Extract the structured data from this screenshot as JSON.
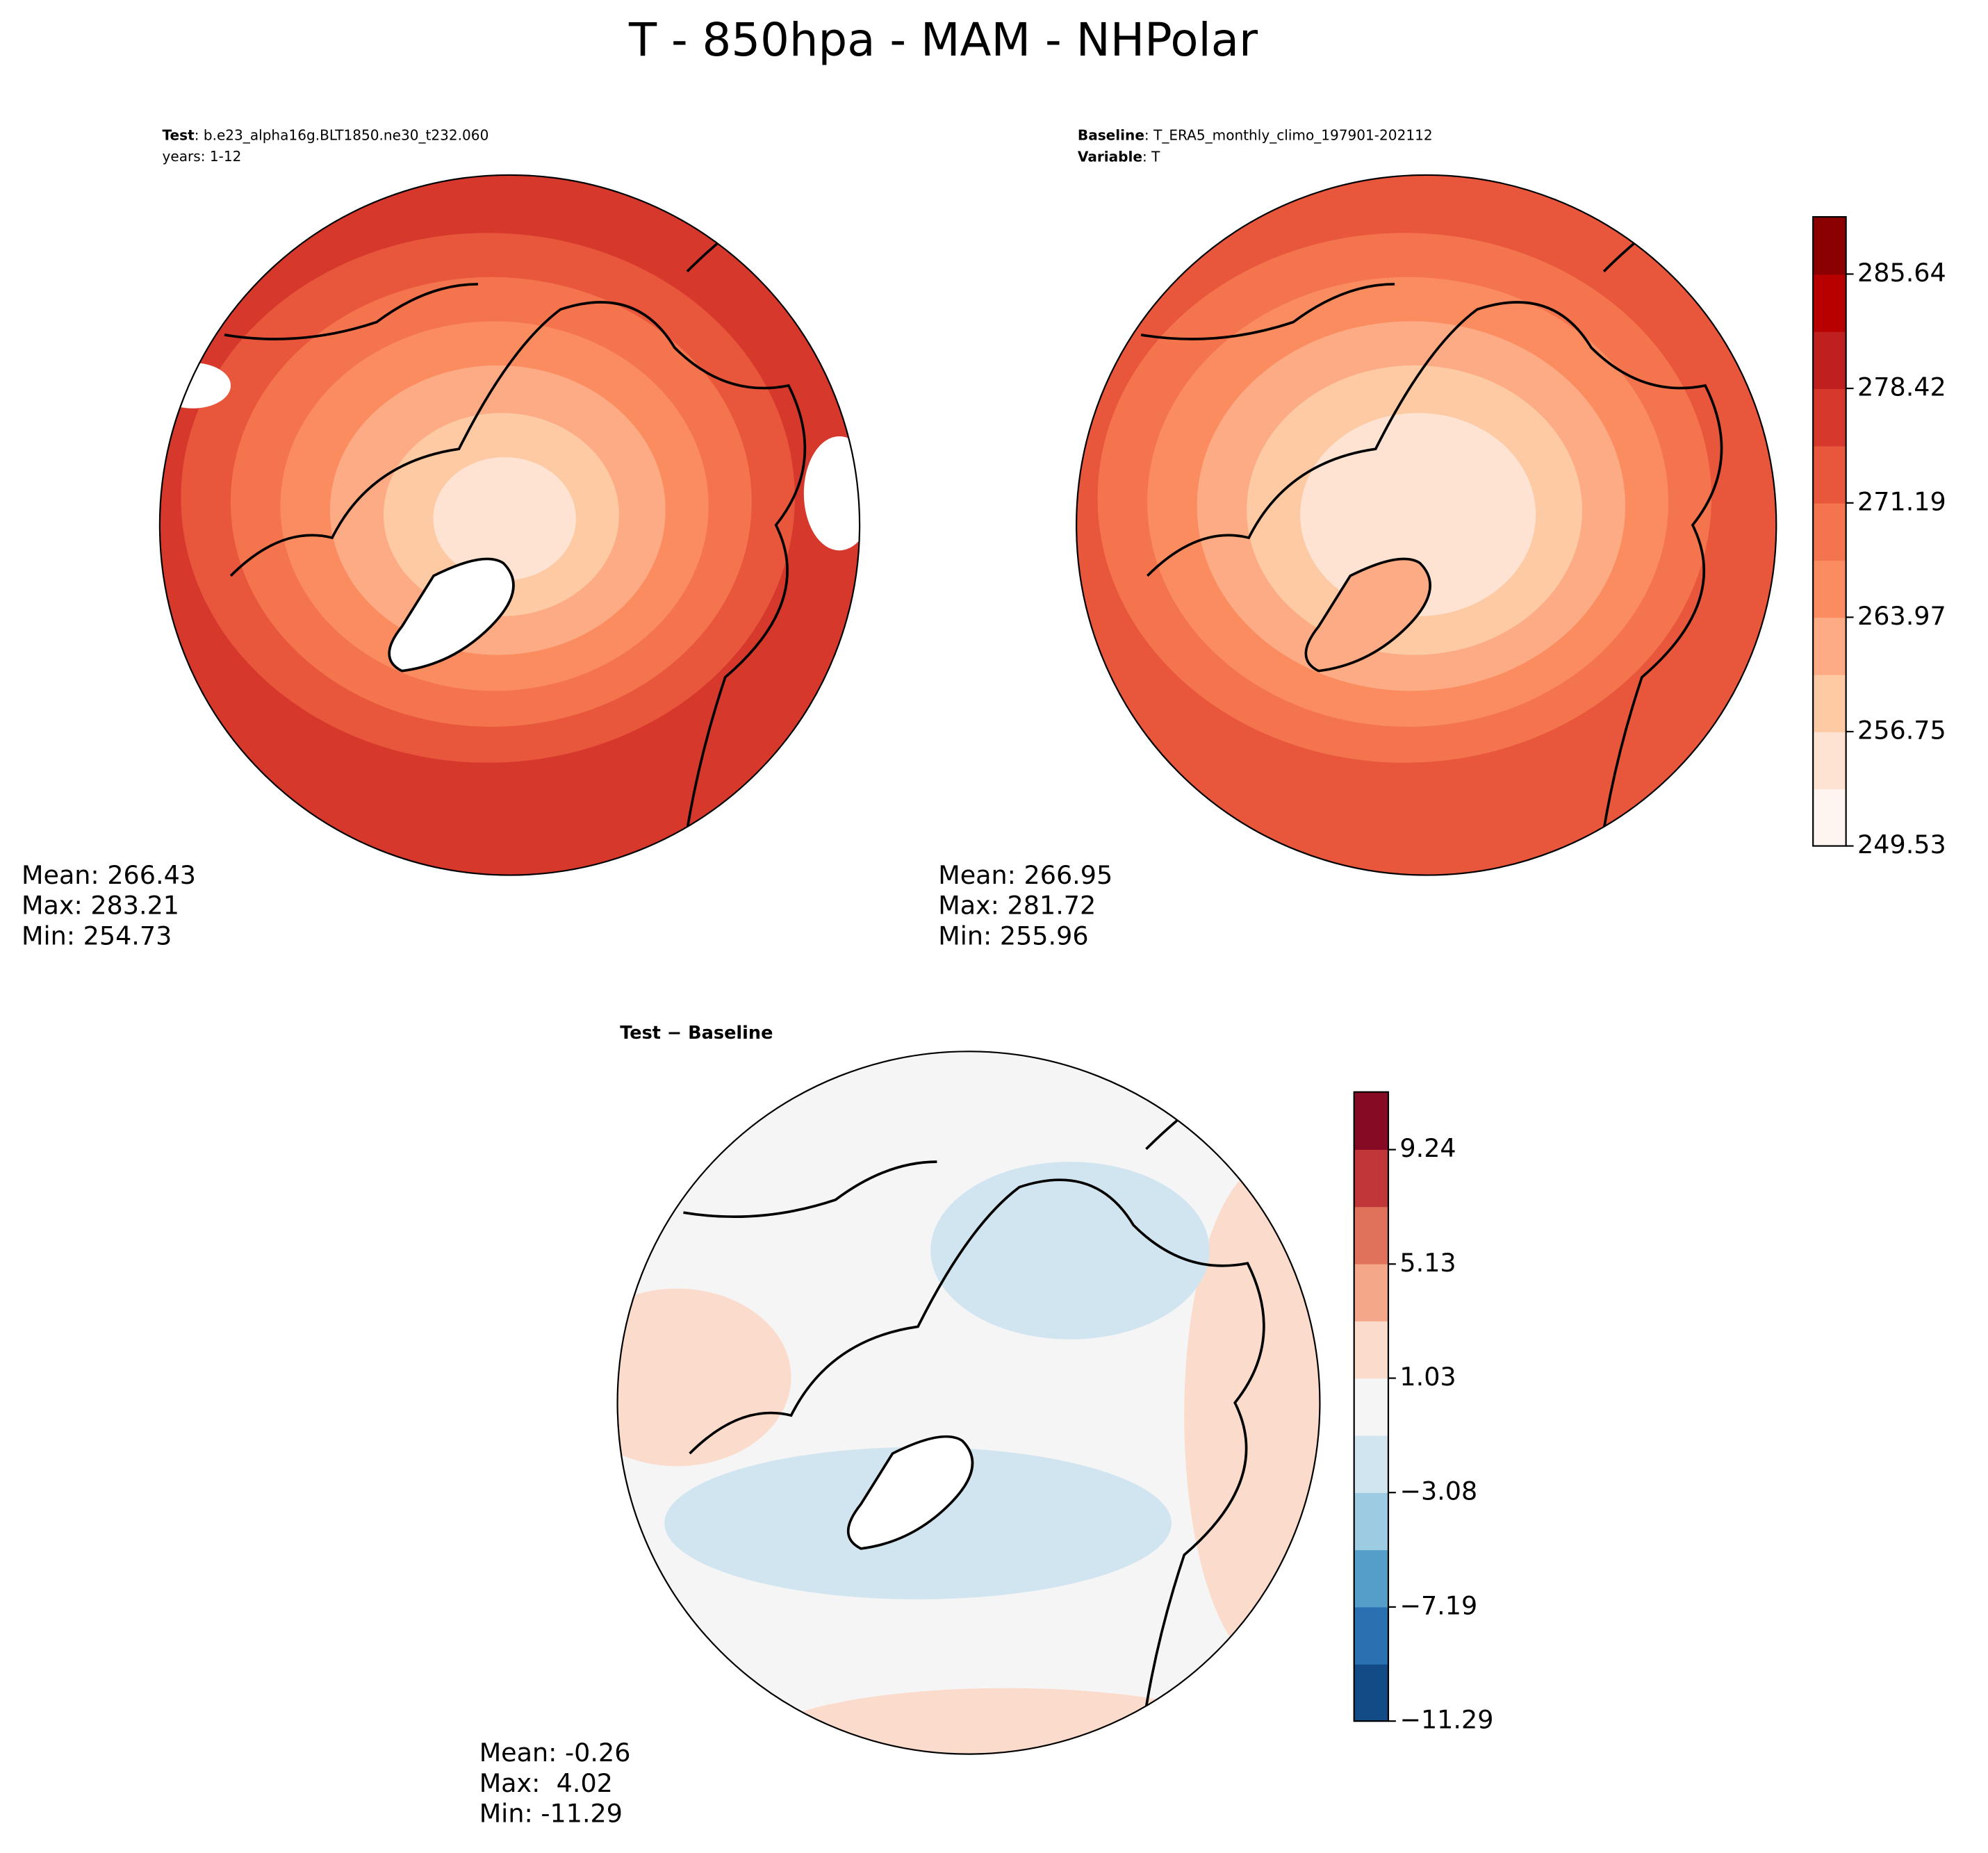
{
  "title": "T - 850hpa - MAM - NHPolar",
  "chart_data": [
    {
      "type": "map",
      "header_label": "Test",
      "header_text": ": b.e23_alpha16g.BLT1850.ne30_t232.060",
      "header_line2": "years: 1-12",
      "stats": [
        "Mean: 266.43",
        "Max: 283.21",
        "Min: 254.73"
      ]
    },
    {
      "type": "map",
      "header_label": "Baseline",
      "header_text": ": T_ERA5_monthly_climo_197901-202112",
      "header_label2": "Variable",
      "header_text2": ": T",
      "stats": [
        "Mean: 266.95",
        "Max: 281.72",
        "Min: 255.96"
      ],
      "clim": [
        249.53,
        289.25
      ],
      "cticks": [
        249.53,
        256.75,
        263.97,
        271.19,
        278.42,
        285.64
      ],
      "colors": [
        "#fff5f0",
        "#fee3d3",
        "#fdcaa4",
        "#fcab84",
        "#fb8c60",
        "#f4744d",
        "#e8563b",
        "#d6392c",
        "#c01f1f",
        "#b80000",
        "#8b0000"
      ]
    },
    {
      "type": "map",
      "header_label": "Test − Baseline",
      "stats": [
        "Mean: -0.26",
        "Max:  4.02",
        "Min: -11.29"
      ],
      "clim": [
        -11.29,
        11.31
      ],
      "cticks": [
        {
          "value": -11.29,
          "label": "−11.29"
        },
        {
          "value": -7.19,
          "label": "−7.19"
        },
        {
          "value": -3.08,
          "label": "−3.08"
        },
        1.03,
        5.13,
        9.24
      ],
      "colors": [
        "#134b87",
        "#2a71b2",
        "#559ec9",
        "#9dcbe1",
        "#d1e5f0",
        "#f5f5f5",
        "#fbdbcb",
        "#f5a889",
        "#e0715a",
        "#c13639",
        "#870a24"
      ]
    }
  ]
}
